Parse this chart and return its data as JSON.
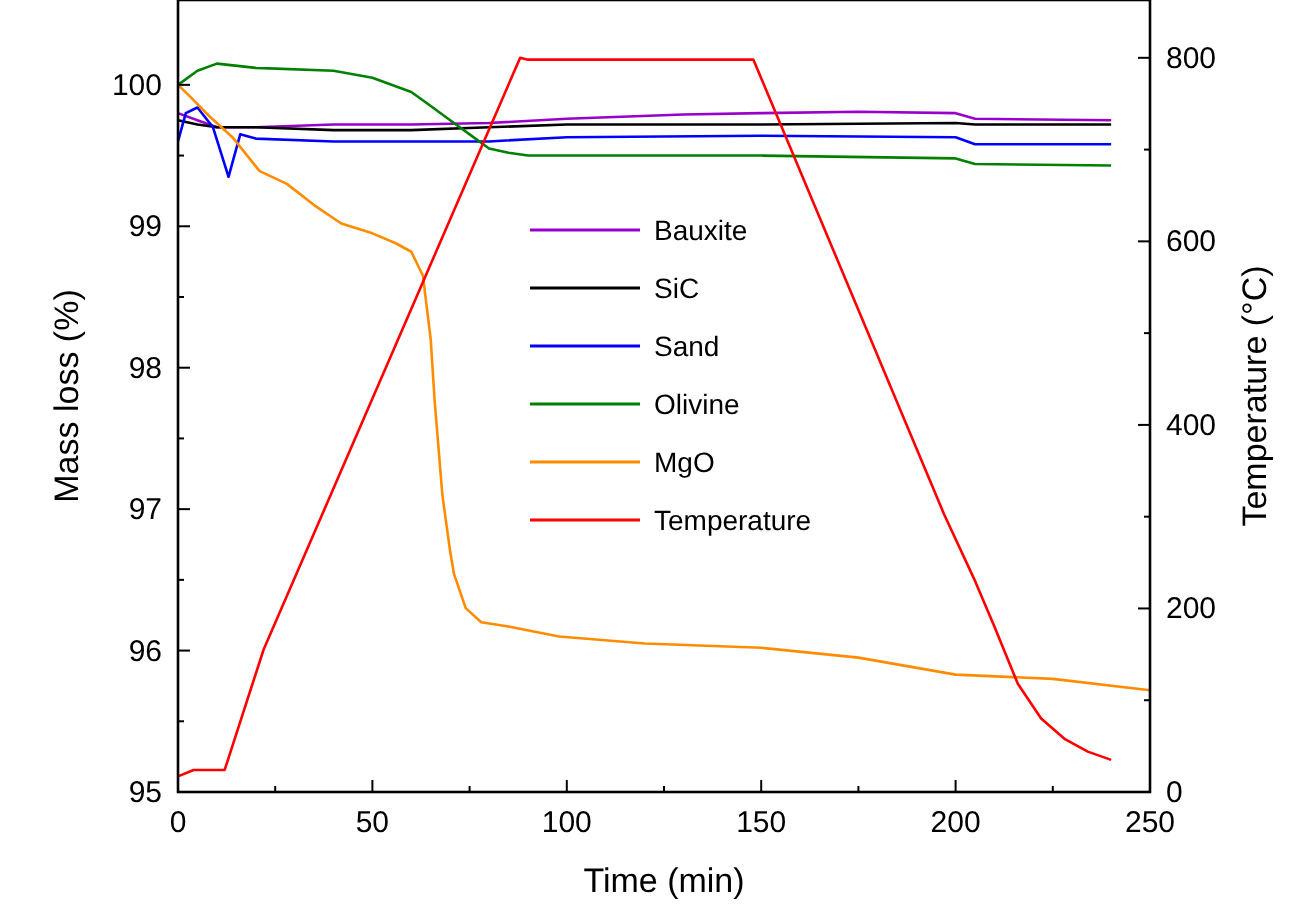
{
  "chart_data": {
    "type": "line",
    "xlabel": "Time (min)",
    "ylabel": "Mass loss (%)",
    "y2label": "Temperature (°C)",
    "xlim": [
      0,
      250
    ],
    "ylim": [
      95,
      100.6
    ],
    "y2lim": [
      0,
      863
    ],
    "xticks": [
      0,
      {
        "value": 25,
        "label": null
      },
      50,
      {
        "value": 75,
        "label": null
      },
      100,
      {
        "value": 125,
        "label": null
      },
      150,
      {
        "value": 175,
        "label": null
      },
      200,
      {
        "value": 225,
        "label": null
      },
      250
    ],
    "yticks": [
      95,
      {
        "value": 95.5,
        "label": null
      },
      96,
      {
        "value": 96.5,
        "label": null
      },
      97,
      {
        "value": 97.5,
        "label": null
      },
      98,
      {
        "value": 98.5,
        "label": null
      },
      99,
      {
        "value": 99.5,
        "label": null
      },
      100
    ],
    "y2ticks": [
      0,
      {
        "value": 100,
        "label": null
      },
      200,
      {
        "value": 300,
        "label": null
      },
      400,
      {
        "value": 500,
        "label": null
      },
      600,
      {
        "value": 700,
        "label": null
      },
      800
    ],
    "grid": false,
    "legend": "center",
    "marker": "none",
    "line_style": "solid",
    "series": [
      {
        "name": "Bauxite",
        "color": "#9900cc",
        "x": [
          0,
          5,
          10,
          20,
          40,
          60,
          80,
          100,
          130,
          150,
          175,
          200,
          205,
          240
        ],
        "values": [
          99.8,
          99.75,
          99.7,
          99.7,
          99.72,
          99.72,
          99.73,
          99.76,
          99.79,
          99.8,
          99.81,
          99.8,
          99.76,
          99.75
        ]
      },
      {
        "name": "SiC",
        "color": "#000000",
        "x": [
          0,
          5,
          10,
          20,
          40,
          60,
          80,
          100,
          150,
          200,
          205,
          240
        ],
        "values": [
          99.75,
          99.72,
          99.7,
          99.7,
          99.68,
          99.68,
          99.7,
          99.72,
          99.72,
          99.73,
          99.72,
          99.72
        ]
      },
      {
        "name": "Sand",
        "color": "#0000ff",
        "x": [
          0,
          2,
          5,
          9,
          13,
          16,
          20,
          40,
          60,
          80,
          100,
          150,
          200,
          205,
          240
        ],
        "values": [
          99.6,
          99.8,
          99.84,
          99.7,
          99.35,
          99.65,
          99.62,
          99.6,
          99.6,
          99.6,
          99.63,
          99.64,
          99.63,
          99.58,
          99.58
        ]
      },
      {
        "name": "Olivine",
        "color": "#008000",
        "x": [
          0,
          5,
          10,
          20,
          40,
          50,
          60,
          65,
          70,
          75,
          80,
          85,
          90,
          150,
          200,
          205,
          240
        ],
        "values": [
          100,
          100.1,
          100.15,
          100.12,
          100.1,
          100.05,
          99.95,
          99.85,
          99.75,
          99.65,
          99.55,
          99.52,
          99.5,
          99.5,
          99.48,
          99.44,
          99.43
        ]
      },
      {
        "name": "MgO",
        "color": "#ff8c00",
        "x": [
          0,
          3,
          8,
          14,
          21,
          28,
          35,
          42,
          50,
          56,
          60,
          63,
          65,
          66,
          68,
          70,
          71,
          74,
          78,
          85,
          98,
          120,
          150,
          175,
          200,
          225,
          250
        ],
        "values": [
          100,
          99.92,
          99.78,
          99.63,
          99.39,
          99.3,
          99.15,
          99.02,
          98.95,
          98.88,
          98.82,
          98.65,
          98.2,
          97.77,
          97.1,
          96.7,
          96.54,
          96.3,
          96.2,
          96.17,
          96.1,
          96.05,
          96.02,
          95.95,
          95.83,
          95.8,
          95.72
        ]
      },
      {
        "name": "Temperature",
        "color": "#ff0000",
        "axis": "y2",
        "x": [
          0,
          4,
          12,
          22,
          88,
          90,
          148,
          197,
          205,
          210,
          216,
          222,
          228,
          234,
          240
        ],
        "values": [
          17,
          24,
          24,
          155,
          800,
          798,
          798,
          303,
          230,
          180,
          118,
          80,
          58,
          44,
          35
        ]
      }
    ]
  }
}
